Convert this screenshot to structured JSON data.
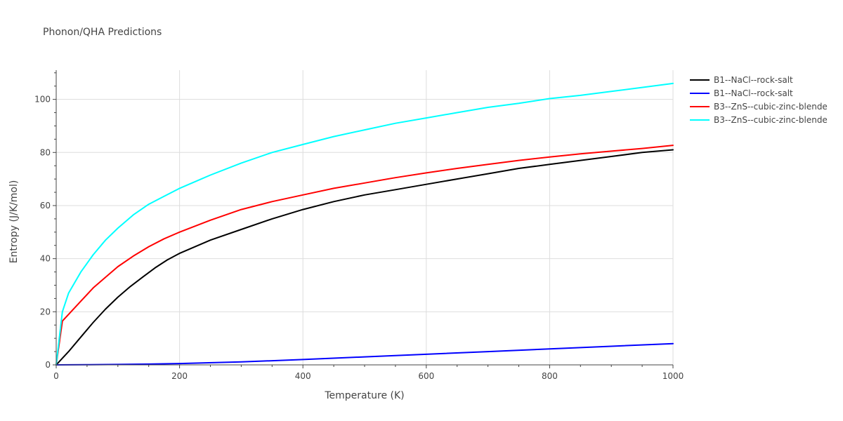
{
  "chart_data": {
    "type": "line",
    "title": "Phonon/QHA Predictions",
    "xlabel": "Temperature (K)",
    "ylabel": "Entropy (J/K/mol)",
    "xlim": [
      0,
      1000
    ],
    "ylim": [
      0,
      111
    ],
    "xticks": [
      0,
      200,
      400,
      600,
      800,
      1000
    ],
    "yticks": [
      0,
      20,
      40,
      60,
      80,
      100
    ],
    "grid": true,
    "legend_position": "top-right outside",
    "series": [
      {
        "name": "B1--NaCl--rock-salt",
        "color": "#000000",
        "x": [
          0,
          20,
          40,
          60,
          80,
          100,
          120,
          140,
          160,
          180,
          200,
          250,
          300,
          350,
          400,
          450,
          500,
          550,
          600,
          650,
          700,
          750,
          800,
          850,
          900,
          950,
          1000
        ],
        "y": [
          0,
          5,
          10.5,
          16,
          21,
          25.5,
          29.5,
          33,
          36.5,
          39.5,
          42,
          47,
          51,
          55,
          58.5,
          61.5,
          64,
          66,
          68,
          70,
          72,
          74,
          75.5,
          77,
          78.5,
          80,
          81
        ]
      },
      {
        "name": "B1--NaCl--rock-salt",
        "color": "#0000ff",
        "x": [
          0,
          50,
          100,
          150,
          200,
          300,
          400,
          500,
          600,
          700,
          800,
          900,
          1000
        ],
        "y": [
          0,
          0.05,
          0.15,
          0.3,
          0.5,
          1.1,
          2,
          3,
          4,
          5,
          6,
          7,
          8
        ]
      },
      {
        "name": "B3--ZnS--cubic-zinc-blende",
        "color": "#ff0000",
        "x": [
          0,
          10,
          20,
          40,
          60,
          80,
          100,
          125,
          150,
          175,
          200,
          250,
          300,
          350,
          400,
          450,
          500,
          550,
          600,
          650,
          700,
          750,
          800,
          850,
          900,
          950,
          1000
        ],
        "y": [
          0,
          16.5,
          19,
          24,
          29,
          33,
          37,
          41,
          44.5,
          47.5,
          50,
          54.5,
          58.5,
          61.5,
          64,
          66.5,
          68.5,
          70.5,
          72.3,
          74,
          75.5,
          77,
          78.3,
          79.5,
          80.5,
          81.5,
          82.7
        ]
      },
      {
        "name": "B3--ZnS--cubic-zinc-blende",
        "color": "#00ffff",
        "x": [
          0,
          10,
          20,
          40,
          60,
          80,
          100,
          125,
          150,
          175,
          200,
          250,
          300,
          350,
          400,
          450,
          500,
          550,
          600,
          650,
          700,
          750,
          800,
          850,
          900,
          950,
          1000
        ],
        "y": [
          0,
          20,
          27,
          35,
          41.5,
          47,
          51.5,
          56.5,
          60.5,
          63.5,
          66.5,
          71.5,
          76,
          80,
          83,
          86,
          88.5,
          91,
          93,
          95,
          97,
          98.5,
          100.3,
          101.5,
          103,
          104.5,
          106
        ]
      }
    ]
  }
}
